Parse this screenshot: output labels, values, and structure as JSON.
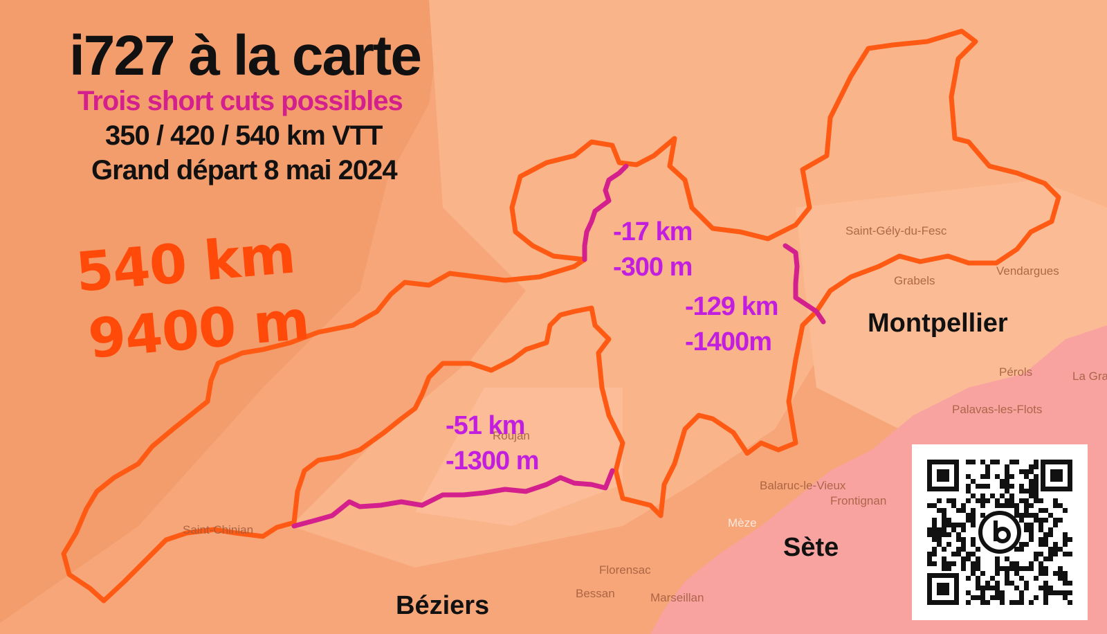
{
  "title": "i727 à la carte",
  "subtitle": "Trois short cuts possibles",
  "distances_line": "350 / 420 / 540 km VTT",
  "start_line": "Grand départ 8 mai 2024",
  "totals": {
    "distance": "540 km",
    "elevation": "9400 m"
  },
  "shortcuts": [
    {
      "distance": "-17 km",
      "elevation": "-300 m"
    },
    {
      "distance": "-129 km",
      "elevation": "-1400m"
    },
    {
      "distance": "-51 km",
      "elevation": "-1300 m"
    }
  ],
  "cities": {
    "montpellier": "Montpellier",
    "sete": "Sète",
    "beziers": "Béziers"
  },
  "towns": {
    "saint_gely": "Saint-Gély-du-Fesc",
    "grabels": "Grabels",
    "vendargues": "Vendargues",
    "perols": "Pérols",
    "la_grande": "La Gra",
    "palavas": "Palavas-les-Flots",
    "balaruc": "Balaruc-le-Vieux",
    "frontignan": "Frontignan",
    "meze": "Mèze",
    "florensac": "Florensac",
    "bessan": "Bessan",
    "marseillan": "Marseillan",
    "saint_chinian": "Saint-Chinian",
    "roujan": "Roujan"
  },
  "colors": {
    "route": "#ff5a14",
    "shortcut": "#d4208d",
    "shortcut_label": "#c21ee0",
    "sea": "#f9a3a0",
    "land": "#f6a679"
  },
  "icons": {
    "qr": "qr-code-icon",
    "logo": "bikepacking-logo-icon"
  }
}
